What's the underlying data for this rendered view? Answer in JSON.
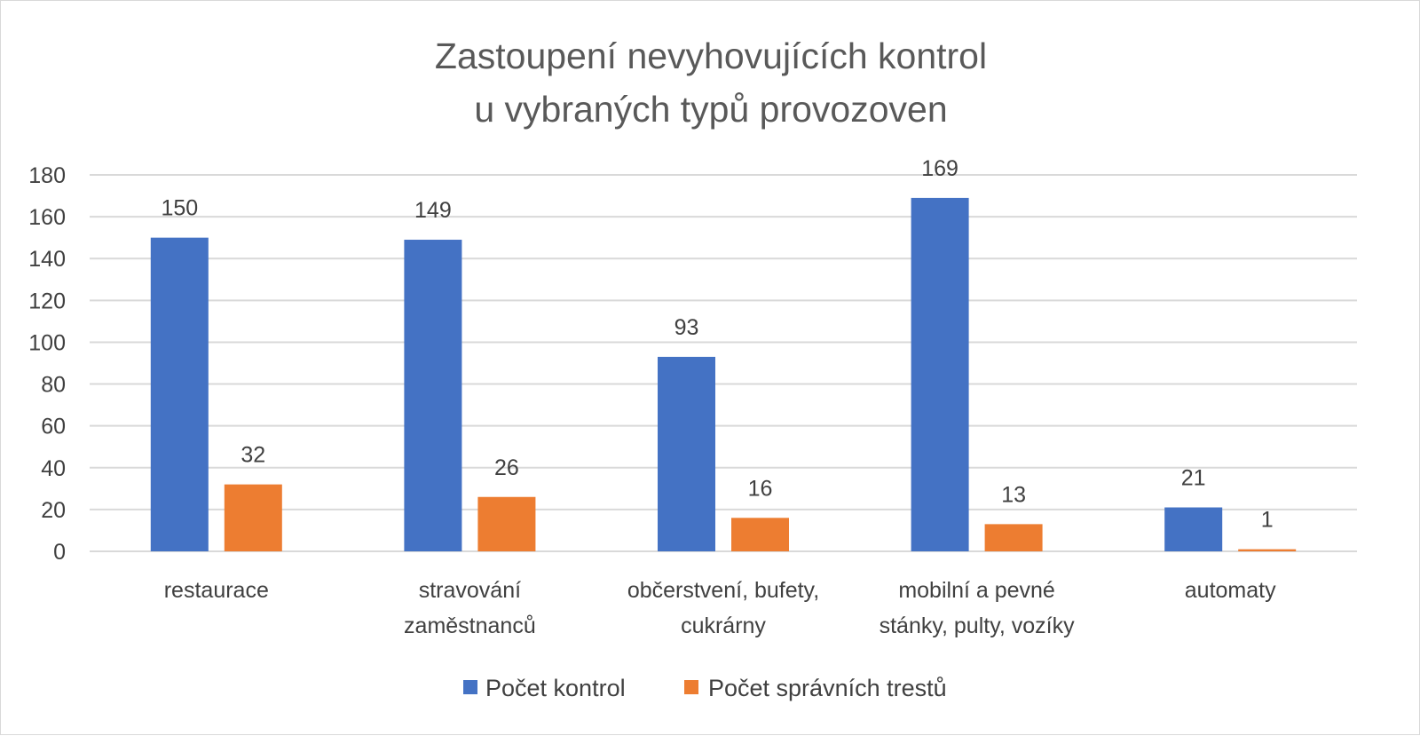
{
  "chart_data": {
    "type": "bar",
    "title": [
      "Zastoupení nevyhovujících kontrol",
      "u vybraných typů provozoven"
    ],
    "categories": [
      [
        "restaurace"
      ],
      [
        "stravování",
        "zaměstnanců"
      ],
      [
        "občerstvení, bufety,",
        "cukrárny"
      ],
      [
        "mobilní a pevné",
        "stánky, pulty, vozíky"
      ],
      [
        "automaty"
      ]
    ],
    "series": [
      {
        "name": "Počet kontrol",
        "color": "#4472c4",
        "values": [
          150,
          149,
          93,
          169,
          21
        ]
      },
      {
        "name": "Počet správních trestů",
        "color": "#ed7d31",
        "values": [
          32,
          26,
          16,
          13,
          1
        ]
      }
    ],
    "ylim": [
      0,
      180
    ],
    "yticks": [
      0,
      20,
      40,
      60,
      80,
      100,
      120,
      140,
      160,
      180
    ],
    "grid": true,
    "legend_position": "bottom",
    "gridColor": "#d9d9d9"
  }
}
